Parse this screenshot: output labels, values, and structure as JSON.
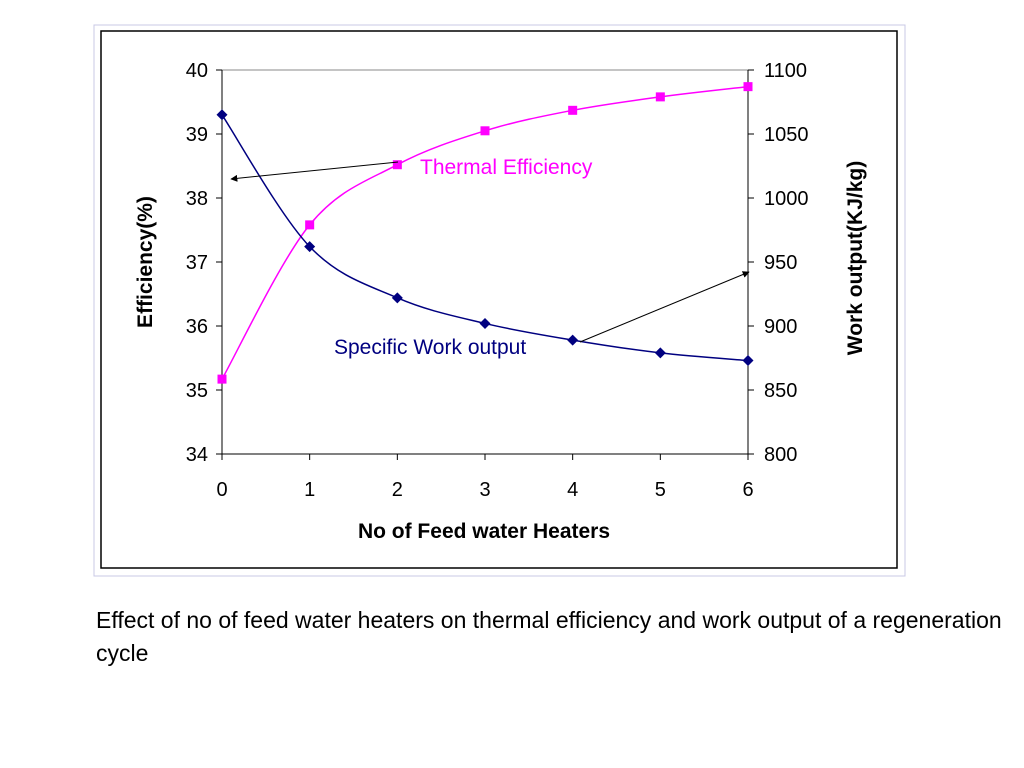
{
  "caption": "Effect of no of feed water heaters on thermal efficiency and work output of a regeneration cycle",
  "chart_data": {
    "type": "line",
    "title": "",
    "xlabel": "No of Feed water Heaters",
    "ylabel": "Efficiency(%)",
    "y2label": "Work output(KJ/kg)",
    "x": [
      0,
      1,
      2,
      3,
      4,
      5,
      6
    ],
    "xlim": [
      0,
      6
    ],
    "ylim": [
      34,
      40
    ],
    "y2lim": [
      800,
      1100
    ],
    "xticks": [
      "0",
      "1",
      "2",
      "3",
      "4",
      "5",
      "6"
    ],
    "yticks": [
      "34",
      "35",
      "36",
      "37",
      "38",
      "39",
      "40"
    ],
    "y2ticks": [
      "800",
      "850",
      "900",
      "950",
      "1000",
      "1050",
      "1100"
    ],
    "grid": false,
    "series": [
      {
        "name": "Thermal Efficiency",
        "axis": "left",
        "marker": "square",
        "color": "#ff00ff",
        "values": [
          35.17,
          37.58,
          38.52,
          39.05,
          39.37,
          39.58,
          39.74
        ]
      },
      {
        "name": "Specific Work output",
        "axis": "right",
        "marker": "diamond",
        "color": "#000080",
        "values": [
          1065,
          962,
          922,
          902,
          889,
          879,
          873
        ]
      }
    ]
  }
}
